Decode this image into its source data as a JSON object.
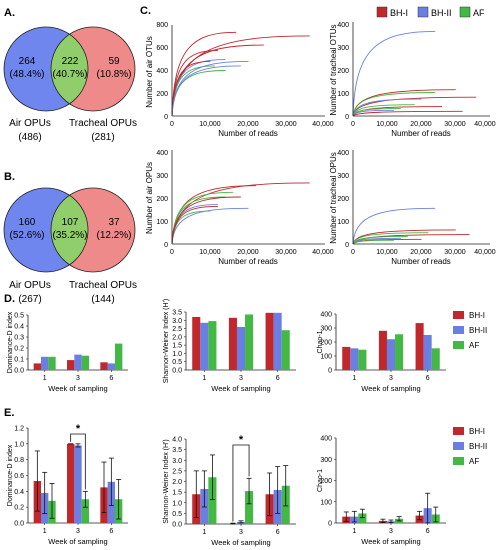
{
  "colors": {
    "bh1": "#c0282c",
    "bh2": "#6b7fe3",
    "af": "#44b844",
    "venn_left": "#6f86ef",
    "venn_right": "#ef8a8a",
    "venn_overlap": "#8fce6a"
  },
  "panel_labels": {
    "a": "A.",
    "b": "B.",
    "c": "C.",
    "d": "D.",
    "e": "E."
  },
  "venn_a": {
    "left_count": "264",
    "left_pct": "(48.4%)",
    "mid_count": "222",
    "mid_pct": "(40.7%)",
    "right_count": "59",
    "right_pct": "(10.8%)",
    "left_label": "Air OPUs",
    "left_total": "(486)",
    "right_label": "Tracheal OPUs",
    "right_total": "(281)"
  },
  "venn_b": {
    "left_count": "160",
    "left_pct": "(52.6%)",
    "mid_count": "107",
    "mid_pct": "(35.2%)",
    "right_count": "37",
    "right_pct": "(12.2%)",
    "left_label": "Air OPUs",
    "left_total": "(267)",
    "right_label": "Tracheal OPUs",
    "right_total": "(144)"
  },
  "legend": {
    "bh1": "BH-I",
    "bh2": "BH-II",
    "af": "AF"
  },
  "rarefaction": {
    "xlabel": "Number of reads",
    "xticks": [
      "0",
      "10,000",
      "20,000",
      "30,000",
      "40,000"
    ],
    "air_otu": {
      "ylabel": "Number of air OTUs",
      "yticks": [
        "0",
        "200",
        "400",
        "600",
        "800"
      ]
    },
    "trach_otu": {
      "ylabel": "Number of tracheal OTUs",
      "yticks": [
        "0",
        "100",
        "200",
        "300",
        "400"
      ]
    },
    "air_opu": {
      "ylabel": "Number of air OPUs",
      "yticks": [
        "0",
        "100",
        "200",
        "300",
        "400"
      ]
    },
    "trach_opu": {
      "ylabel": "Number of tracheal OPUs",
      "yticks": [
        "0",
        "100",
        "200",
        "300",
        "400"
      ]
    }
  },
  "common": {
    "xlabel": "Week of sampling"
  },
  "chart_data": [
    {
      "id": "D-dominance",
      "type": "bar",
      "categories": [
        "1",
        "3",
        "6"
      ],
      "ylabel": "Dominance-D index",
      "ylim": [
        0,
        0.5
      ],
      "yticks": [
        "0.0",
        "0.1",
        "0.2",
        "0.3",
        "0.4",
        "0.5"
      ],
      "series": [
        {
          "name": "BH-I",
          "values": [
            0.06,
            0.09,
            0.07
          ]
        },
        {
          "name": "BH-II",
          "values": [
            0.12,
            0.14,
            0.06
          ]
        },
        {
          "name": "AF",
          "values": [
            0.12,
            0.13,
            0.24
          ]
        }
      ]
    },
    {
      "id": "D-shannon",
      "type": "bar",
      "categories": [
        "1",
        "3",
        "6"
      ],
      "ylabel": "Shannon-Weiner Index (H')",
      "ylim": [
        0,
        3.5
      ],
      "yticks": [
        "0.0",
        "0.5",
        "1.0",
        "1.5",
        "2.0",
        "2.5",
        "3.0",
        "3.5"
      ],
      "series": [
        {
          "name": "BH-I",
          "values": [
            3.2,
            3.15,
            3.45
          ]
        },
        {
          "name": "BH-II",
          "values": [
            2.85,
            2.6,
            3.45
          ]
        },
        {
          "name": "AF",
          "values": [
            2.95,
            3.35,
            2.4
          ]
        }
      ]
    },
    {
      "id": "D-chao",
      "type": "bar",
      "categories": [
        "1",
        "3",
        "6"
      ],
      "ylabel": "Chao-1",
      "ylim": [
        0,
        400
      ],
      "yticks": [
        "0",
        "100",
        "200",
        "300",
        "400"
      ],
      "series": [
        {
          "name": "BH-I",
          "values": [
            165,
            280,
            335
          ]
        },
        {
          "name": "BH-II",
          "values": [
            155,
            220,
            250
          ]
        },
        {
          "name": "AF",
          "values": [
            145,
            255,
            155
          ]
        }
      ]
    },
    {
      "id": "E-dominance",
      "type": "bar",
      "categories": [
        "1",
        "3",
        "6"
      ],
      "ylabel": "Dominance-D index",
      "ylim": [
        0,
        1.2
      ],
      "yticks": [
        "0.0",
        "0.2",
        "0.4",
        "0.6",
        "0.8",
        "1.0",
        "1.2"
      ],
      "series": [
        {
          "name": "BH-I",
          "values": [
            0.53,
            1.0,
            0.45
          ],
          "errors": [
            0.38,
            0,
            0.32
          ]
        },
        {
          "name": "BH-II",
          "values": [
            0.38,
            0.98,
            0.52
          ],
          "errors": [
            0.26,
            0.02,
            0.3
          ]
        },
        {
          "name": "AF",
          "values": [
            0.28,
            0.3,
            0.3
          ],
          "errors": [
            0.22,
            0.1,
            0.25
          ]
        }
      ],
      "annotation": "*"
    },
    {
      "id": "E-shannon",
      "type": "bar",
      "categories": [
        "1",
        "3",
        "6"
      ],
      "ylabel": "Shannon-Weiner Index (H')",
      "ylim": [
        0,
        4.0
      ],
      "yticks": [
        "0.0",
        "0.5",
        "1.0",
        "1.5",
        "2.0",
        "2.5",
        "3.0",
        "3.5",
        "4.0"
      ],
      "series": [
        {
          "name": "BH-I",
          "values": [
            1.4,
            0.02,
            1.4
          ],
          "errors": [
            1.1,
            0.02,
            1.0
          ]
        },
        {
          "name": "BH-II",
          "values": [
            1.65,
            0.1,
            1.6
          ],
          "errors": [
            0.85,
            0.05,
            1.1
          ]
        },
        {
          "name": "AF",
          "values": [
            2.2,
            1.55,
            1.8
          ],
          "errors": [
            1.05,
            0.6,
            0.95
          ]
        }
      ],
      "annotation": "*"
    },
    {
      "id": "E-chao",
      "type": "bar",
      "categories": [
        "1",
        "3",
        "6"
      ],
      "ylabel": "Chao-1",
      "ylim": [
        0,
        400
      ],
      "yticks": [
        "0",
        "100",
        "200",
        "300",
        "400"
      ],
      "series": [
        {
          "name": "BH-I",
          "values": [
            30,
            10,
            35
          ],
          "errors": [
            22,
            8,
            20
          ]
        },
        {
          "name": "BH-II",
          "values": [
            30,
            8,
            70
          ],
          "errors": [
            25,
            6,
            70
          ]
        },
        {
          "name": "AF",
          "values": [
            45,
            20,
            40
          ],
          "errors": [
            20,
            10,
            35
          ]
        }
      ]
    }
  ]
}
